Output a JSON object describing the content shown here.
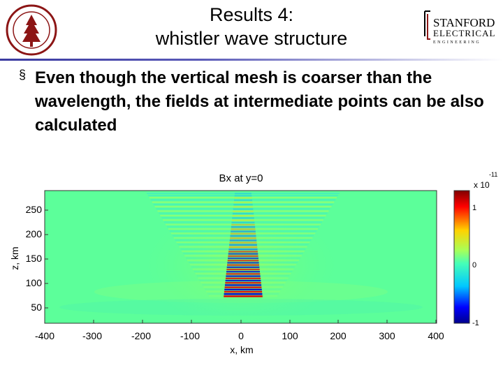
{
  "slide": {
    "title_line1": "Results 4:",
    "title_line2": "whistler wave structure",
    "bullet_char": "§",
    "bullet_text": "Even though the vertical mesh is coarser than the wavelength, the fields at intermediate points can be also calculated"
  },
  "logos": {
    "left": "stanford-seal",
    "right_line1": "STANFORD",
    "right_line2": "ELECTRICAL",
    "right_line3": "ENGINEERING"
  },
  "colors": {
    "title_bar": "#3a3aa0",
    "seal": "#8c1515",
    "background_field": "#5cff9a"
  },
  "figure": {
    "title": "Bx at y=0",
    "xlabel": "x, km",
    "ylabel": "z, km",
    "xticks": [
      "-400",
      "-300",
      "-200",
      "-100",
      "0",
      "100",
      "200",
      "300",
      "400"
    ],
    "yticks": [
      "250",
      "200",
      "150",
      "100",
      "50"
    ],
    "colorbar_ticks": [
      "1",
      "0",
      "-1"
    ],
    "colorbar_scale": "x 10",
    "colorbar_exponent": "-11"
  }
}
